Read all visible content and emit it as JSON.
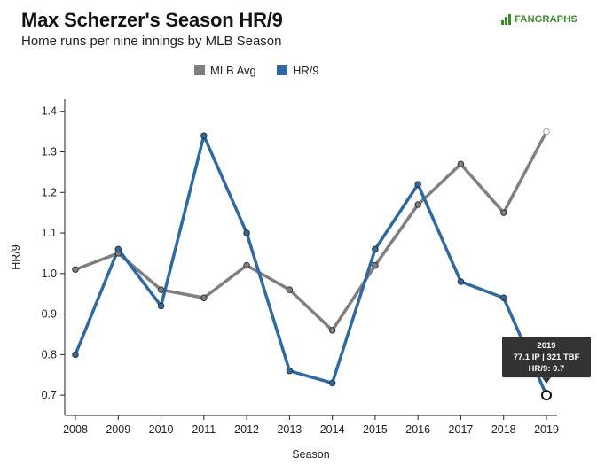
{
  "header": {
    "title": "Max Scherzer's Season HR/9",
    "subtitle": "Home runs per nine innings by MLB Season",
    "brand": "FANGRAPHS"
  },
  "colors": {
    "mlb_avg": "#7f7f7f",
    "player": "#2e6aa1",
    "tooltip_bg": "#333333"
  },
  "chart_data": {
    "type": "line",
    "title": "Max Scherzer's Season HR/9",
    "xlabel": "Season",
    "ylabel": "HR/9",
    "x": [
      2008,
      2009,
      2010,
      2011,
      2012,
      2013,
      2014,
      2015,
      2016,
      2017,
      2018,
      2019
    ],
    "ylim": [
      0.65,
      1.43
    ],
    "yticks": [
      0.7,
      0.8,
      0.9,
      1.0,
      1.1,
      1.2,
      1.3,
      1.4
    ],
    "ytick_labels": [
      "0.7",
      "0.8",
      "0.9",
      "1.0",
      "1.1",
      "1.2",
      "1.3",
      "1.4"
    ],
    "legend_position": "top-center",
    "series": [
      {
        "name": "MLB Avg",
        "key": "mlb_avg",
        "values": [
          1.01,
          1.05,
          0.96,
          0.94,
          1.02,
          0.96,
          0.86,
          1.02,
          1.17,
          1.27,
          1.15,
          1.35
        ]
      },
      {
        "name": "HR/9",
        "key": "player",
        "values": [
          0.8,
          1.06,
          0.92,
          1.34,
          1.1,
          0.76,
          0.73,
          1.06,
          1.22,
          0.98,
          0.94,
          0.7
        ]
      }
    ],
    "tooltip": {
      "season": "2019",
      "line1": "77.1 IP | 321 TBF",
      "line2": "HR/9: 0.7",
      "series": "player",
      "index": 11
    }
  }
}
